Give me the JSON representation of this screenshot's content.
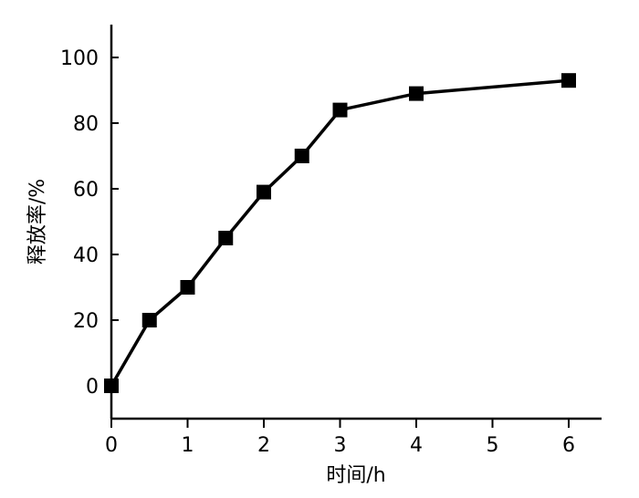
{
  "chart_data": {
    "type": "line",
    "title": "",
    "xlabel": "时间/h",
    "ylabel": "释放率/%",
    "xlim": [
      0,
      6.4
    ],
    "ylim": [
      -10,
      110
    ],
    "x_ticks": [
      0,
      1,
      2,
      3,
      4,
      5,
      6
    ],
    "y_ticks": [
      0,
      20,
      40,
      60,
      80,
      100
    ],
    "grid": false,
    "legend": "none",
    "marker": "square",
    "color": "#000000",
    "x": [
      0,
      0.5,
      1,
      1.5,
      2,
      2.5,
      3,
      4,
      6
    ],
    "y": [
      0,
      20,
      30,
      45,
      59,
      70,
      84,
      89,
      93
    ]
  }
}
